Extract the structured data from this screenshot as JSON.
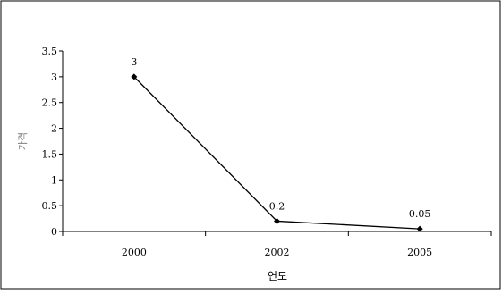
{
  "chart_data": {
    "type": "line",
    "categories": [
      "2000",
      "2002",
      "2005"
    ],
    "series": [
      {
        "values": [
          3,
          0.2,
          0.05
        ],
        "data_labels": [
          "3",
          "0.2",
          "0.05"
        ]
      }
    ],
    "xlabel": "연도",
    "ylabel": "가격",
    "ylim": [
      0,
      3.5
    ],
    "yticks": [
      "0",
      "0.5",
      "1",
      "1.5",
      "2",
      "2.5",
      "3",
      "3.5"
    ],
    "grid": false,
    "legend": "none",
    "colors": {
      "line": "#000000",
      "axis": "#000000",
      "ylabel": "#808080"
    }
  }
}
